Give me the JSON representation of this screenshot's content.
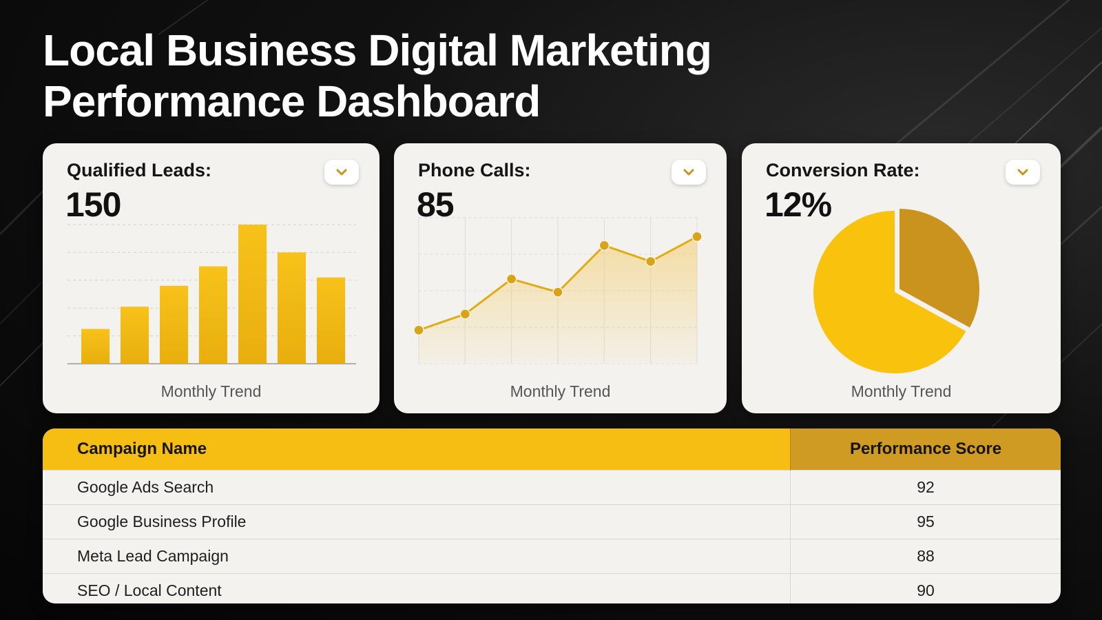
{
  "title": {
    "line1": "Local Business Digital Marketing",
    "line2": "Performance Dashboard"
  },
  "colors": {
    "accent": "#f6bd12",
    "accent_dark": "#cf9b22",
    "card_bg": "#f3f2ef",
    "page_bg": "#0b0b0b"
  },
  "cards": [
    {
      "label": "Qualified Leads:",
      "value": "150",
      "caption": "Monthly Trend",
      "icon": "chevron-down-icon"
    },
    {
      "label": "Phone Calls:",
      "value": "85",
      "caption": "Monthly Trend",
      "icon": "chevron-down-icon"
    },
    {
      "label": "Conversion Rate:",
      "value": "12%",
      "caption": "Monthly Trend",
      "icon": "chevron-down-icon"
    }
  ],
  "chart_data": [
    {
      "type": "bar",
      "values": [
        2.5,
        4.1,
        5.6,
        7.0,
        10.0,
        8.0,
        6.2
      ],
      "ylim": [
        0,
        10
      ],
      "grid": true,
      "color": "#f6bd12"
    },
    {
      "type": "area",
      "x": [
        1,
        2,
        3,
        4,
        5,
        6,
        7
      ],
      "y": [
        2.3,
        3.4,
        5.8,
        4.9,
        8.1,
        7.0,
        8.7
      ],
      "ylim": [
        0,
        10
      ],
      "grid": true,
      "color": "#e0ac14"
    },
    {
      "type": "pie",
      "values": [
        67,
        33
      ],
      "colors": [
        "#f9c20d",
        "#c9931d"
      ]
    }
  ],
  "table": {
    "headers": [
      "Campaign Name",
      "Performance Score"
    ],
    "rows": [
      [
        "Google Ads Search",
        "92"
      ],
      [
        "Google Business Profile",
        "95"
      ],
      [
        "Meta Lead Campaign",
        "88"
      ],
      [
        "SEO / Local Content",
        "90"
      ]
    ]
  }
}
